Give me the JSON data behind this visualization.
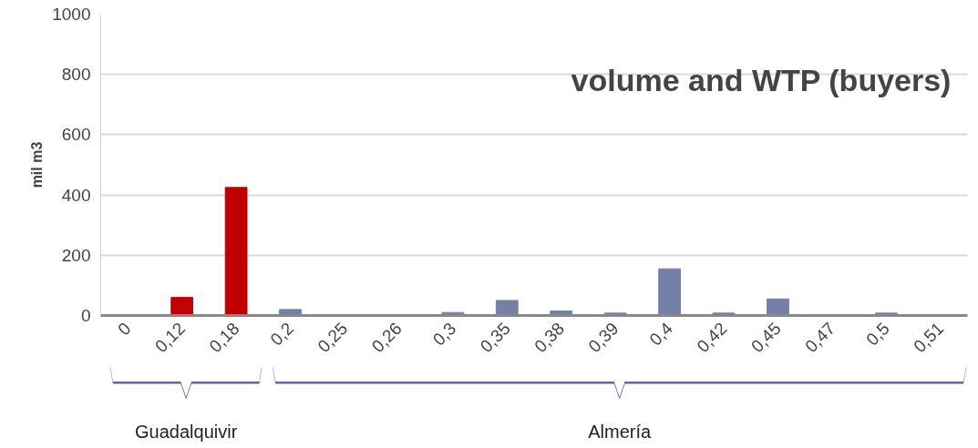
{
  "chart_data": {
    "type": "bar",
    "title": "volume  and WTP (buyers)",
    "ylabel": "mil m3",
    "categories": [
      "0",
      "0,12",
      "0,18",
      "0,2",
      "0,25",
      "0,26",
      "0,3",
      "0,35",
      "0,38",
      "0,39",
      "0,4",
      "0,42",
      "0,45",
      "0,47",
      "0,5",
      "0,51"
    ],
    "values": [
      0,
      60,
      425,
      20,
      0,
      0,
      10,
      50,
      15,
      8,
      155,
      8,
      55,
      0,
      8,
      0
    ],
    "colors": [
      "#c00000",
      "#c00000",
      "#c00000",
      "#7480a8",
      "#7480a8",
      "#7480a8",
      "#7480a8",
      "#7480a8",
      "#7480a8",
      "#7480a8",
      "#7480a8",
      "#7480a8",
      "#7480a8",
      "#7480a8",
      "#7480a8",
      "#7480a8"
    ],
    "ylim": [
      0,
      1000
    ],
    "yticks": [
      0,
      200,
      400,
      600,
      800,
      1000
    ],
    "grid": "y",
    "annotations": [
      "Guadalquivir",
      "Almería"
    ]
  }
}
